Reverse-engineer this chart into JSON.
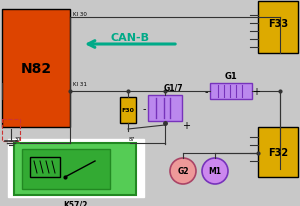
{
  "bg_color": "#c8c8c8",
  "n82_color": "#dd4400",
  "f33_color": "#ddaa00",
  "f32_color": "#ddaa00",
  "f30_color": "#ddaa00",
  "k57_outer_color": "#55cc55",
  "k57_inner_color": "#33aa33",
  "g1_color": "#bb88ee",
  "g17_color": "#bb88ee",
  "g2_color": "#ee9999",
  "m1_color": "#cc88ee",
  "wire_color": "#333333",
  "red_wire_color": "#cc2222",
  "arrow_color": "#00aa88",
  "can_b_text": "CAN-B",
  "n82_label": "N82",
  "f33_label": "F33",
  "f32_label": "F32",
  "f30_label": "F30",
  "k57_label": "K57/2",
  "g1_label": "G1",
  "g17_label": "G1/7",
  "g2_label": "G2",
  "m1_label": "M1",
  "ki30_label": "KI 30",
  "ki31_label": "KI 31"
}
